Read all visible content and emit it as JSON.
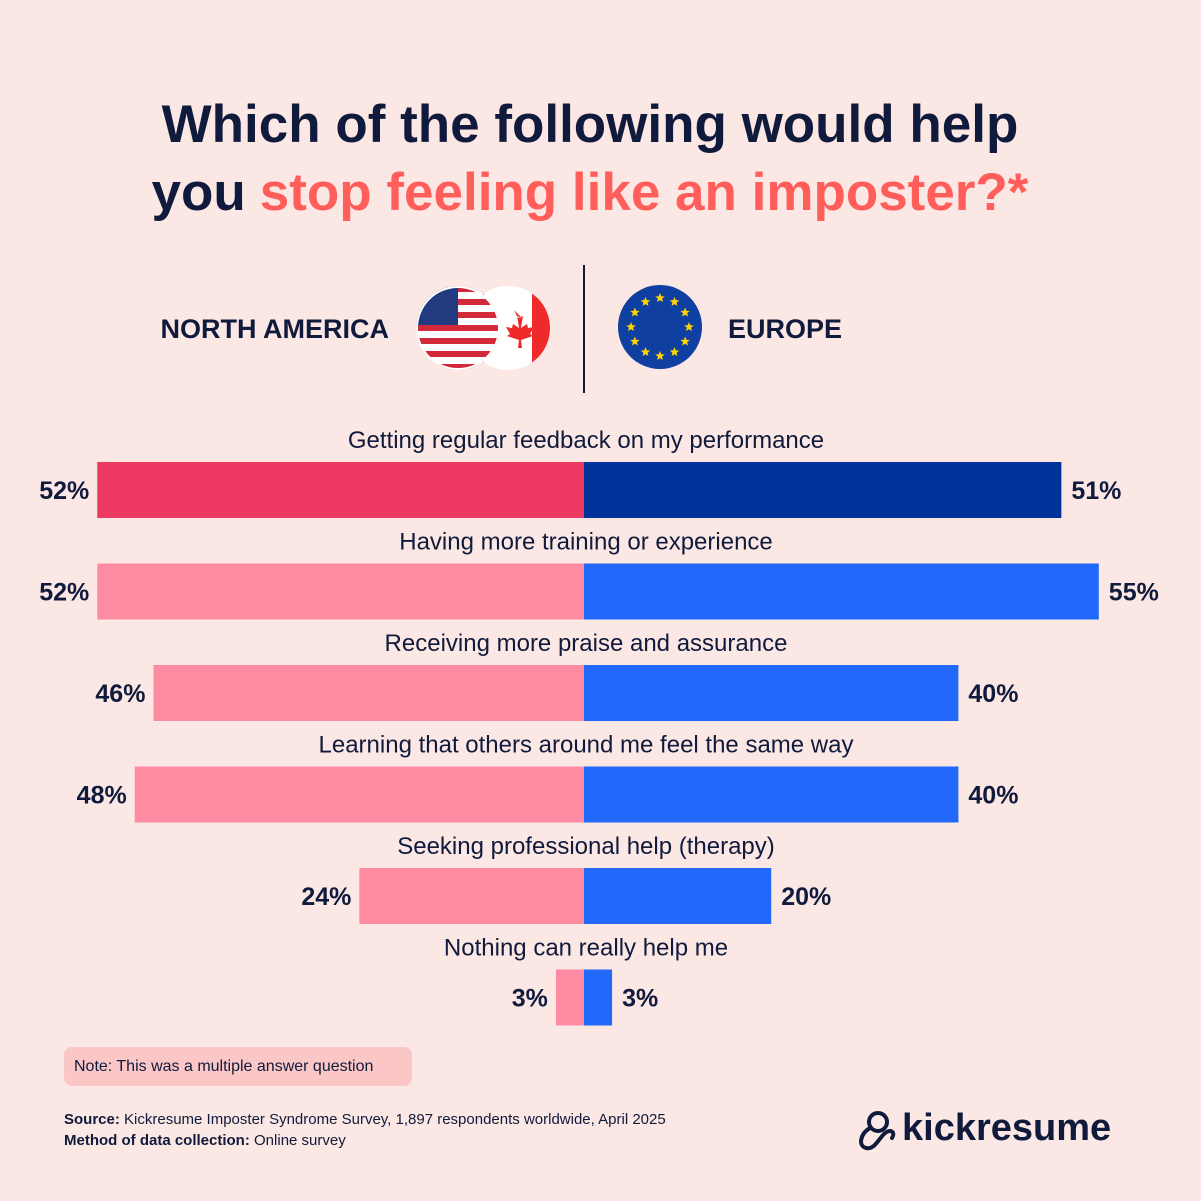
{
  "chart_data": {
    "type": "diverging-bar",
    "title": [
      [
        {
          "text": "Which of the following would help",
          "color": "#101a3c"
        }
      ],
      [
        {
          "text": "you",
          "color": "#101a3c"
        },
        {
          "text": "stop feeling like an imposter?*",
          "color": "#ff5e5b"
        }
      ]
    ],
    "categories": [
      "Getting regular feedback on my performance",
      "Having more training or experience",
      "Receiving more praise and assurance",
      "Learning that others around me feel the same way",
      "Seeking professional help (therapy)",
      "Nothing can really help me"
    ],
    "series": [
      {
        "name": "NORTH AMERICA",
        "side": "left",
        "colors": [
          "#ee3962",
          "#ff8ba3",
          "#ff8ba3",
          "#ff8ba3",
          "#ff8ba3",
          "#ff8ba3"
        ],
        "values": [
          52,
          52,
          46,
          48,
          24,
          3
        ],
        "value_labels": [
          "52%",
          "52%",
          "46%",
          "48%",
          "24%",
          "3%"
        ]
      },
      {
        "name": "EUROPE",
        "side": "right",
        "colors": [
          "#00339a",
          "#2168fb",
          "#2168fb",
          "#2168fb",
          "#2168fb",
          "#2168fb"
        ],
        "values": [
          51,
          55,
          40,
          40,
          20,
          3
        ],
        "value_labels": [
          "51%",
          "55%",
          "40%",
          "40%",
          "20%",
          "3%"
        ]
      }
    ],
    "note": "Note: This was a multiple answer question",
    "source_label": "Source:",
    "source": "Kickresume Imposter Syndrome Survey, 1,897 respondents worldwide, April 2025",
    "method_label": "Method of data collection:",
    "method": "Online survey",
    "logo": "kickresume"
  }
}
